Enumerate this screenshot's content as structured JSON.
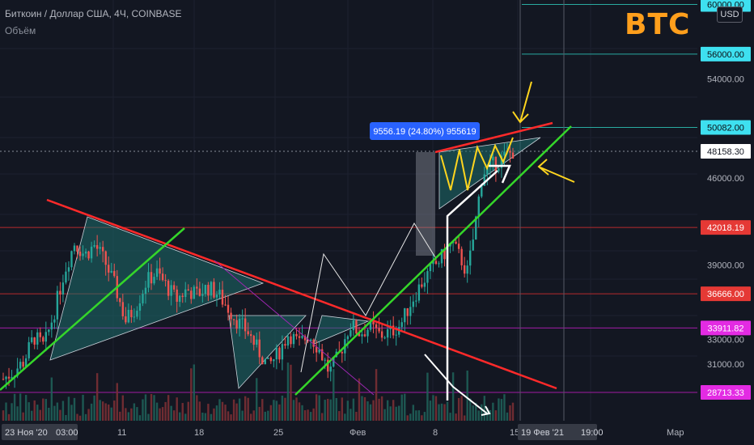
{
  "header": {
    "symbol_line": "Биткоин / Доллар США, 4Ч, COINBASE",
    "indicator": "Объём",
    "watermark": "BTC",
    "currency": "USD"
  },
  "colors": {
    "background": "#131722",
    "up": "#26a69a",
    "down": "#ef5350",
    "resistance": "#ff2a2a",
    "support": "#35d62a",
    "pattern_fill": "#1d6e6c",
    "arrows_yellow": "#ffd51e"
  },
  "chart_data": {
    "type": "candlestick",
    "price_scale": {
      "ylim": [
        27000,
        63000
      ],
      "ticks": [
        60000,
        56000,
        54000,
        50082,
        48158.3,
        46000,
        42018.19,
        39000,
        36666,
        33911.82,
        33000,
        31000,
        28713.33
      ]
    },
    "axis_labels": [
      "23 Ноя '20",
      "03:00",
      "11",
      "18",
      "25",
      "Фев",
      "8",
      "15",
      "19 Фев '21",
      "19:00",
      "Мар"
    ],
    "price_labels": [
      {
        "text": "60000.00",
        "value": 60000,
        "style": "cyan"
      },
      {
        "text": "56000.00",
        "value": 56000,
        "style": "cyan"
      },
      {
        "text": "54000.00",
        "value": 54000,
        "style": "tick"
      },
      {
        "text": "50082.00",
        "value": 50082,
        "style": "cyan"
      },
      {
        "text": "48158.30",
        "value": 48158.3,
        "style": "white"
      },
      {
        "text": "46000.00",
        "value": 46000,
        "style": "tick"
      },
      {
        "text": "42018.19",
        "value": 42018.19,
        "style": "red"
      },
      {
        "text": "39000.00",
        "value": 39000,
        "style": "tick"
      },
      {
        "text": "36666.00",
        "value": 36666,
        "style": "red"
      },
      {
        "text": "33911.82",
        "value": 33911.82,
        "style": "magenta"
      },
      {
        "text": "33000.00",
        "value": 33000,
        "style": "tick"
      },
      {
        "text": "31000.00",
        "value": 31000,
        "style": "tick"
      },
      {
        "text": "28713.33",
        "value": 28713.33,
        "style": "magenta"
      }
    ],
    "measure_label": "9556.19 (24.80%) 955619",
    "price_path": [
      [
        0.0,
        29800
      ],
      [
        0.02,
        30400
      ],
      [
        0.04,
        31200
      ],
      [
        0.06,
        33200
      ],
      [
        0.08,
        32400
      ],
      [
        0.1,
        35200
      ],
      [
        0.12,
        38500
      ],
      [
        0.14,
        40800
      ],
      [
        0.16,
        39800
      ],
      [
        0.18,
        40600
      ],
      [
        0.2,
        39200
      ],
      [
        0.22,
        37200
      ],
      [
        0.24,
        34500
      ],
      [
        0.26,
        35600
      ],
      [
        0.28,
        37600
      ],
      [
        0.3,
        38400
      ],
      [
        0.32,
        37300
      ],
      [
        0.34,
        36200
      ],
      [
        0.36,
        37000
      ],
      [
        0.38,
        36600
      ],
      [
        0.4,
        37200
      ],
      [
        0.42,
        36700
      ],
      [
        0.44,
        35600
      ],
      [
        0.46,
        34400
      ],
      [
        0.48,
        33600
      ],
      [
        0.5,
        32100
      ],
      [
        0.52,
        30800
      ],
      [
        0.54,
        31900
      ],
      [
        0.56,
        33500
      ],
      [
        0.58,
        32600
      ],
      [
        0.6,
        33400
      ],
      [
        0.62,
        32200
      ],
      [
        0.64,
        30300
      ],
      [
        0.66,
        31800
      ],
      [
        0.68,
        34200
      ],
      [
        0.7,
        33500
      ],
      [
        0.72,
        34000
      ],
      [
        0.74,
        33300
      ],
      [
        0.76,
        33600
      ],
      [
        0.78,
        34200
      ],
      [
        0.8,
        36000
      ],
      [
        0.82,
        37500
      ],
      [
        0.84,
        38600
      ],
      [
        0.86,
        39600
      ],
      [
        0.88,
        40800
      ],
      [
        0.9,
        39300
      ],
      [
        0.91,
        38300
      ],
      [
        0.92,
        40500
      ],
      [
        0.94,
        46400
      ],
      [
        0.96,
        47000
      ],
      [
        0.98,
        47600
      ],
      [
        1.0,
        48158.3
      ]
    ]
  }
}
